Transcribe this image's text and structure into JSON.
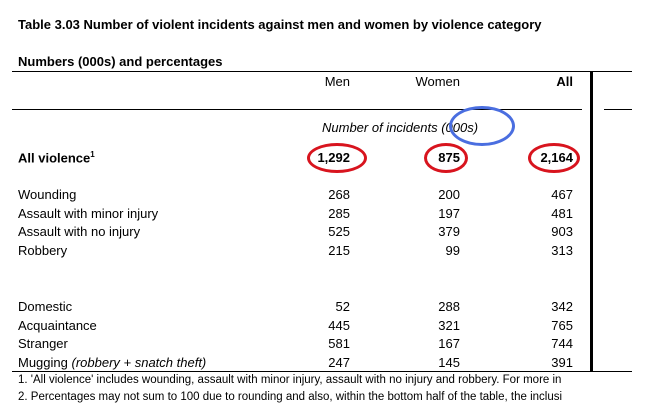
{
  "title": "Table 3.03  Number of violent incidents against men and women by violence category",
  "subtitle": "Numbers (000s) and percentages",
  "columns": [
    "Men",
    "Women",
    "All"
  ],
  "section_label": "Number of incidents (000s)",
  "all_violence": {
    "label": "All violence",
    "sup": "1",
    "values": [
      "1,292",
      "875",
      "2,164"
    ]
  },
  "group1": [
    {
      "label": "Wounding",
      "values": [
        "268",
        "200",
        "467"
      ]
    },
    {
      "label": "Assault with minor injury",
      "values": [
        "285",
        "197",
        "481"
      ]
    },
    {
      "label": "Assault with no injury",
      "values": [
        "525",
        "379",
        "903"
      ]
    },
    {
      "label": "Robbery",
      "values": [
        "215",
        "99",
        "313"
      ]
    }
  ],
  "group2": [
    {
      "label": "Domestic",
      "values": [
        "52",
        "288",
        "342"
      ]
    },
    {
      "label": "Acquaintance",
      "values": [
        "445",
        "321",
        "765"
      ]
    },
    {
      "label": "Stranger",
      "values": [
        "581",
        "167",
        "744"
      ]
    },
    {
      "label": "Mugging",
      "label_italic": "(robbery + snatch theft)",
      "values": [
        "247",
        "145",
        "391"
      ]
    }
  ],
  "footnotes": [
    "1. 'All violence' includes wounding, assault with minor injury, assault with no injury and robbery. For more in",
    "2. Percentages may not sum to 100 due to rounding and also, within the bottom half of the table, the inclusi"
  ],
  "colors": {
    "red_annotation": "#d8141e",
    "blue_annotation": "#4a6ee0"
  }
}
